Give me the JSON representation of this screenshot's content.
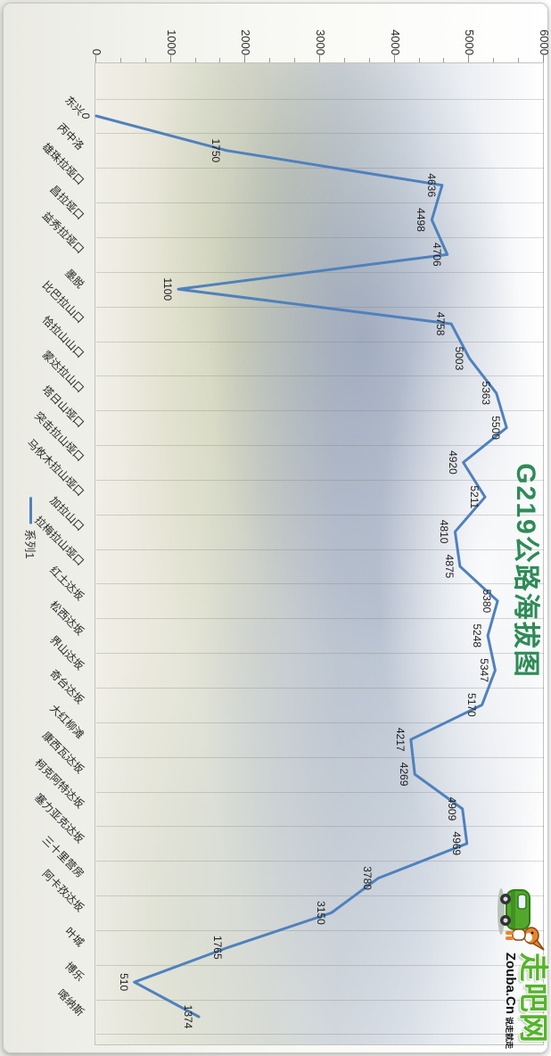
{
  "title": "G219公路海拔图",
  "legend": {
    "series_label": "系列1",
    "position": "bottom"
  },
  "watermark": {
    "site_name": "走吧网",
    "site_url": "Zouba.Cn",
    "slogan": "说走就走"
  },
  "colors": {
    "line": "#4f81bd",
    "title": "#2e8b57",
    "logo_green": "#56b42a",
    "gridline": "rgba(120,120,110,0.28)"
  },
  "chart_data": {
    "type": "line",
    "title": "G219公路海拔图",
    "orientation": "rotated_90_clockwise",
    "categories": [
      "东兴",
      "丙中洛",
      "雄珠拉垭口",
      "昌拉垭口",
      "益秀拉垭口",
      "墨脱",
      "比巴拉山口",
      "恰拉山山口",
      "蒙达拉山口",
      "塔日山垭口",
      "突击拉山垭口",
      "马攸木拉山垭口",
      "加拉山口",
      "拉梅拉山垭口",
      "红土达坂",
      "松西达坂",
      "界山达坂",
      "奇台达坂",
      "大红柳滩",
      "康西瓦达坂",
      "柯克阿特达坂",
      "塞力亚克达坂",
      "三十里营房",
      "阿卡孜达坂",
      "叶城",
      "博乐",
      "喀纳斯"
    ],
    "series": [
      {
        "name": "系列1",
        "values": [
          0,
          1750,
          4636,
          4498,
          4706,
          1100,
          4758,
          5003,
          5363,
          5500,
          4920,
          5211,
          4810,
          4875,
          5380,
          5248,
          5347,
          5170,
          4217,
          4269,
          4909,
          4969,
          3780,
          3150,
          1765,
          510,
          1374
        ]
      }
    ],
    "ylim": [
      0,
      6000
    ],
    "yticks": [
      0,
      1000,
      2000,
      3000,
      4000,
      5000,
      6000
    ],
    "grid": "category_gridlines_only",
    "legend_position": "bottom",
    "data_labels": "value_below_each_point"
  }
}
